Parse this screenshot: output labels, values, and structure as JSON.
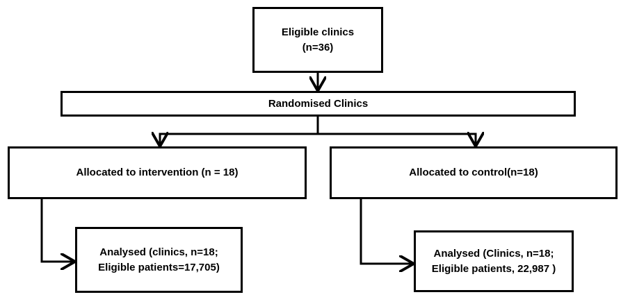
{
  "nodes": {
    "eligible": {
      "line1": "Eligible clinics",
      "line2": "(n=36)"
    },
    "randomised": {
      "label": "Randomised Clinics"
    },
    "intervention": {
      "label": "Allocated to intervention (n = 18)"
    },
    "control": {
      "label": "Allocated to control(n=18)"
    },
    "analysed_intervention": {
      "line1": "Analysed (clinics, n=18;",
      "line2": "Eligible patients=17,705)"
    },
    "analysed_control": {
      "line1": "Analysed (Clinics, n=18;",
      "line2": "Eligible patients, 22,987 )"
    }
  }
}
